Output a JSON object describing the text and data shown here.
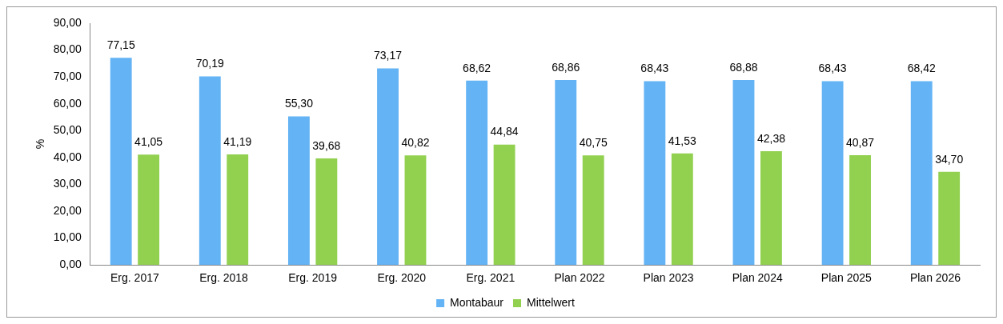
{
  "chart_data": {
    "type": "bar",
    "ylabel": "%",
    "categories": [
      "Erg. 2017",
      "Erg. 2018",
      "Erg. 2019",
      "Erg. 2020",
      "Erg. 2021",
      "Plan 2022",
      "Plan 2023",
      "Plan 2024",
      "Plan 2025",
      "Plan 2026"
    ],
    "series": [
      {
        "name": "Montabaur",
        "color": "#63b3f5",
        "values": [
          77.15,
          70.19,
          55.3,
          73.17,
          68.62,
          68.86,
          68.43,
          68.88,
          68.43,
          68.42
        ],
        "value_labels": [
          "77,15",
          "70,19",
          "55,30",
          "73,17",
          "68,62",
          "68,86",
          "68,43",
          "68,88",
          "68,43",
          "68,42"
        ]
      },
      {
        "name": "Mittelwert",
        "color": "#92d050",
        "values": [
          41.05,
          41.19,
          39.68,
          40.82,
          44.84,
          40.75,
          41.53,
          42.38,
          40.87,
          34.7
        ],
        "value_labels": [
          "41,05",
          "41,19",
          "39,68",
          "40,82",
          "44,84",
          "40,75",
          "41,53",
          "42,38",
          "40,87",
          "34,70"
        ]
      }
    ],
    "ylim": [
      0,
      90
    ],
    "yticks": [
      {
        "value": 0,
        "label": "0,00"
      },
      {
        "value": 10,
        "label": "10,00"
      },
      {
        "value": 20,
        "label": "20,00"
      },
      {
        "value": 30,
        "label": "30,00"
      },
      {
        "value": 40,
        "label": "40,00"
      },
      {
        "value": 50,
        "label": "50,00"
      },
      {
        "value": 60,
        "label": "60,00"
      },
      {
        "value": 70,
        "label": "70,00"
      },
      {
        "value": 80,
        "label": "80,00"
      },
      {
        "value": 90,
        "label": "90,00"
      }
    ],
    "grid": false,
    "legend": "bottom"
  }
}
